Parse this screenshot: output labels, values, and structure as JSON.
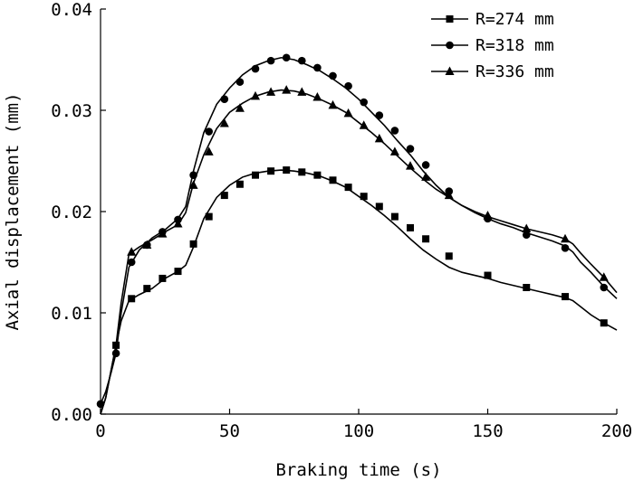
{
  "chart_data": {
    "type": "line",
    "title": "",
    "xlabel": "Braking time (s)",
    "ylabel": "Axial displacement (mm)",
    "xlim": [
      0,
      200
    ],
    "ylim": [
      0.0,
      0.04
    ],
    "xticks": [
      0,
      50,
      100,
      150,
      200
    ],
    "xtick_labels": [
      "0",
      "50",
      "100",
      "150",
      "200"
    ],
    "yticks": [
      0.0,
      0.01,
      0.02,
      0.03,
      0.04
    ],
    "ytick_labels": [
      "0.00",
      "0.01",
      "0.02",
      "0.03",
      "0.04"
    ],
    "grid": false,
    "legend_position": "top-right",
    "series": [
      {
        "name": "R=274 mm",
        "marker": "square",
        "line_x": [
          0,
          2,
          4,
          6,
          8,
          11,
          15,
          20,
          25,
          30,
          33,
          36,
          40,
          45,
          50,
          55,
          60,
          65,
          70,
          75,
          80,
          85,
          90,
          95,
          100,
          105,
          110,
          115,
          120,
          125,
          130,
          135,
          140,
          145,
          150,
          155,
          160,
          165,
          170,
          175,
          180,
          183,
          186,
          190,
          195,
          200
        ],
        "line_y": [
          0.0,
          0.0016,
          0.0042,
          0.0068,
          0.0092,
          0.0112,
          0.0118,
          0.0124,
          0.0134,
          0.0141,
          0.0147,
          0.0165,
          0.0193,
          0.0214,
          0.0226,
          0.0234,
          0.0238,
          0.024,
          0.0241,
          0.024,
          0.0238,
          0.0235,
          0.023,
          0.0224,
          0.0215,
          0.0206,
          0.0196,
          0.0185,
          0.0173,
          0.0162,
          0.0153,
          0.0145,
          0.014,
          0.0137,
          0.0134,
          0.013,
          0.0127,
          0.0124,
          0.0121,
          0.0118,
          0.0115,
          0.0112,
          0.0106,
          0.0098,
          0.009,
          0.0083
        ],
        "marker_x": [
          6,
          12,
          18,
          24,
          30,
          36,
          42,
          48,
          54,
          60,
          66,
          72,
          78,
          84,
          90,
          96,
          102,
          108,
          114,
          120,
          126,
          135,
          150,
          165,
          180,
          195
        ],
        "marker_y": [
          0.0068,
          0.0114,
          0.0124,
          0.0134,
          0.0141,
          0.0168,
          0.0195,
          0.0216,
          0.0227,
          0.0236,
          0.024,
          0.0241,
          0.0239,
          0.0236,
          0.0231,
          0.0224,
          0.0215,
          0.0205,
          0.0195,
          0.0184,
          0.0173,
          0.0156,
          0.0137,
          0.0125,
          0.0116,
          0.009
        ]
      },
      {
        "name": "R=318 mm",
        "marker": "circle",
        "line_x": [
          0,
          2,
          4,
          6,
          8,
          11,
          15,
          20,
          25,
          30,
          33,
          36,
          40,
          45,
          50,
          55,
          60,
          65,
          70,
          75,
          80,
          85,
          90,
          95,
          100,
          105,
          110,
          115,
          120,
          125,
          130,
          135,
          140,
          145,
          150,
          155,
          160,
          165,
          170,
          175,
          180,
          183,
          186,
          190,
          195,
          200
        ],
        "line_y": [
          0.001,
          0.0022,
          0.004,
          0.006,
          0.01,
          0.0145,
          0.0162,
          0.0174,
          0.0182,
          0.0193,
          0.0205,
          0.024,
          0.0278,
          0.0306,
          0.0322,
          0.0335,
          0.0344,
          0.0349,
          0.0352,
          0.035,
          0.0345,
          0.0339,
          0.0331,
          0.0322,
          0.0311,
          0.0298,
          0.0285,
          0.027,
          0.0256,
          0.024,
          0.0226,
          0.0214,
          0.0206,
          0.0199,
          0.0193,
          0.0188,
          0.0184,
          0.0179,
          0.0175,
          0.0171,
          0.0166,
          0.016,
          0.015,
          0.014,
          0.0126,
          0.0114
        ],
        "marker_x": [
          0,
          6,
          12,
          18,
          24,
          30,
          36,
          42,
          48,
          54,
          60,
          66,
          72,
          78,
          84,
          90,
          96,
          102,
          108,
          114,
          120,
          126,
          135,
          150,
          165,
          180,
          195
        ],
        "marker_y": [
          0.001,
          0.006,
          0.015,
          0.0167,
          0.018,
          0.0192,
          0.0236,
          0.0279,
          0.0311,
          0.0328,
          0.0341,
          0.0349,
          0.0352,
          0.0349,
          0.0342,
          0.0334,
          0.0324,
          0.0308,
          0.0295,
          0.028,
          0.0262,
          0.0246,
          0.022,
          0.0193,
          0.0177,
          0.0164,
          0.0125
        ]
      },
      {
        "name": "R=336 mm",
        "marker": "triangle",
        "line_x": [
          0,
          2,
          4,
          6,
          8,
          11,
          15,
          20,
          25,
          30,
          33,
          36,
          40,
          45,
          50,
          55,
          60,
          65,
          70,
          75,
          80,
          85,
          90,
          95,
          100,
          105,
          110,
          115,
          120,
          125,
          130,
          135,
          140,
          145,
          150,
          155,
          160,
          165,
          170,
          175,
          180,
          183,
          186,
          190,
          195,
          200
        ],
        "line_y": [
          0.0,
          0.0016,
          0.0042,
          0.0068,
          0.011,
          0.0158,
          0.0165,
          0.0172,
          0.018,
          0.0187,
          0.0199,
          0.0228,
          0.0256,
          0.0282,
          0.0298,
          0.0307,
          0.0314,
          0.0318,
          0.032,
          0.0319,
          0.0316,
          0.0311,
          0.0305,
          0.0298,
          0.0288,
          0.0278,
          0.0267,
          0.0255,
          0.0243,
          0.0232,
          0.0222,
          0.0214,
          0.0206,
          0.02,
          0.0195,
          0.0191,
          0.0187,
          0.0183,
          0.018,
          0.0177,
          0.0173,
          0.0168,
          0.0159,
          0.0148,
          0.0135,
          0.012
        ],
        "marker_x": [
          12,
          18,
          24,
          30,
          36,
          42,
          48,
          54,
          60,
          66,
          72,
          78,
          84,
          90,
          96,
          102,
          108,
          114,
          120,
          126,
          135,
          150,
          165,
          180,
          195
        ],
        "marker_y": [
          0.016,
          0.0167,
          0.0178,
          0.0188,
          0.0226,
          0.0259,
          0.0287,
          0.0302,
          0.0314,
          0.0318,
          0.032,
          0.0318,
          0.0313,
          0.0305,
          0.0297,
          0.0285,
          0.0272,
          0.0259,
          0.0245,
          0.0234,
          0.0216,
          0.0196,
          0.0183,
          0.0173,
          0.0135
        ]
      }
    ]
  }
}
